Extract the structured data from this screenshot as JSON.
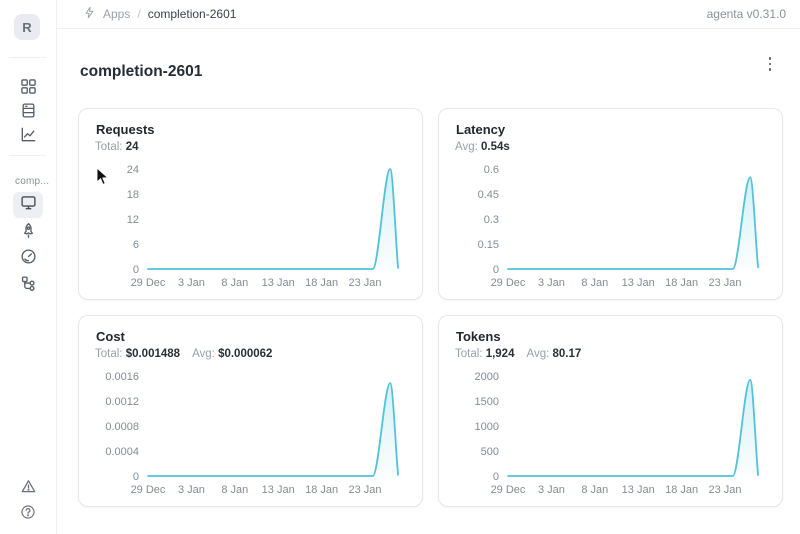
{
  "app": {
    "version_label": "agenta v0.31.0",
    "workspace_initial": "R"
  },
  "breadcrumb": {
    "icon": "bolt-icon",
    "items": [
      "Apps",
      "completion-2601"
    ],
    "separator": "/"
  },
  "page": {
    "title": "completion-2601"
  },
  "sidebar": {
    "workspace_label": "comp...",
    "top_icons": [
      "grid-icon",
      "rows-icon",
      "line-chart-icon"
    ],
    "app_icons": [
      "monitor-icon",
      "rocket-icon",
      "gauge-icon",
      "tree-icon"
    ],
    "active_icon": "monitor-icon",
    "bottom_icons": [
      "warning-triangle-icon",
      "question-circle-icon"
    ]
  },
  "colors": {
    "line": "#4FC3DC",
    "card_border": "#e4e7ec",
    "muted_text": "#99a0a9"
  },
  "chart_data": [
    {
      "type": "area",
      "title": "Requests",
      "stats": [
        {
          "label": "Total:",
          "value": "24"
        }
      ],
      "x_tick_labels": [
        "29 Dec",
        "3 Jan",
        "8 Jan",
        "13 Jan",
        "18 Jan",
        "23 Jan"
      ],
      "x_tick_days": [
        0,
        5,
        10,
        15,
        20,
        25
      ],
      "x_domain": [
        0,
        28.8
      ],
      "y_ticks": [
        0,
        6,
        12,
        18,
        24
      ],
      "y_tick_labels": [
        "0",
        "6",
        "12",
        "18",
        "24"
      ],
      "ylim": [
        0,
        24
      ],
      "grid": false,
      "legend": false,
      "points": [
        [
          0,
          0
        ],
        [
          5,
          0
        ],
        [
          10,
          0
        ],
        [
          15,
          0
        ],
        [
          20,
          0
        ],
        [
          25,
          0
        ],
        [
          25.9,
          0
        ],
        [
          27.9,
          24
        ],
        [
          28.8,
          0.3
        ]
      ],
      "line_color": "#4FC3DC"
    },
    {
      "type": "area",
      "title": "Latency",
      "stats": [
        {
          "label": "Avg:",
          "value": "0.54s"
        }
      ],
      "x_tick_labels": [
        "29 Dec",
        "3 Jan",
        "8 Jan",
        "13 Jan",
        "18 Jan",
        "23 Jan"
      ],
      "x_tick_days": [
        0,
        5,
        10,
        15,
        20,
        25
      ],
      "x_domain": [
        0,
        28.8
      ],
      "y_ticks": [
        0,
        0.15,
        0.3,
        0.45,
        0.6
      ],
      "y_tick_labels": [
        "0",
        "0.15",
        "0.3",
        "0.45",
        "0.6"
      ],
      "ylim": [
        0,
        0.6
      ],
      "grid": false,
      "legend": false,
      "points": [
        [
          0,
          0
        ],
        [
          5,
          0
        ],
        [
          10,
          0
        ],
        [
          15,
          0
        ],
        [
          20,
          0
        ],
        [
          25,
          0
        ],
        [
          25.9,
          0
        ],
        [
          27.9,
          0.55
        ],
        [
          28.8,
          0.01
        ]
      ],
      "line_color": "#4FC3DC"
    },
    {
      "type": "area",
      "title": "Cost",
      "stats": [
        {
          "label": "Total:",
          "value": "$0.001488"
        },
        {
          "label": "Avg:",
          "value": "$0.000062"
        }
      ],
      "x_tick_labels": [
        "29 Dec",
        "3 Jan",
        "8 Jan",
        "13 Jan",
        "18 Jan",
        "23 Jan"
      ],
      "x_tick_days": [
        0,
        5,
        10,
        15,
        20,
        25
      ],
      "x_domain": [
        0,
        28.8
      ],
      "y_ticks": [
        0,
        0.0004,
        0.0008,
        0.0012,
        0.0016
      ],
      "y_tick_labels": [
        "0",
        "0.0004",
        "0.0008",
        "0.0012",
        "0.0016"
      ],
      "ylim": [
        0,
        0.0016
      ],
      "grid": false,
      "legend": false,
      "points": [
        [
          0,
          0
        ],
        [
          5,
          0
        ],
        [
          10,
          0
        ],
        [
          15,
          0
        ],
        [
          20,
          0
        ],
        [
          25,
          0
        ],
        [
          25.9,
          0
        ],
        [
          27.9,
          0.001488
        ],
        [
          28.8,
          2e-05
        ]
      ],
      "line_color": "#4FC3DC"
    },
    {
      "type": "area",
      "title": "Tokens",
      "stats": [
        {
          "label": "Total:",
          "value": "1,924"
        },
        {
          "label": "Avg:",
          "value": "80.17"
        }
      ],
      "x_tick_labels": [
        "29 Dec",
        "3 Jan",
        "8 Jan",
        "13 Jan",
        "18 Jan",
        "23 Jan"
      ],
      "x_tick_days": [
        0,
        5,
        10,
        15,
        20,
        25
      ],
      "x_domain": [
        0,
        28.8
      ],
      "y_ticks": [
        0,
        500,
        1000,
        1500,
        2000
      ],
      "y_tick_labels": [
        "0",
        "500",
        "1000",
        "1500",
        "2000"
      ],
      "ylim": [
        0,
        2000
      ],
      "grid": false,
      "legend": false,
      "points": [
        [
          0,
          0
        ],
        [
          5,
          0
        ],
        [
          10,
          0
        ],
        [
          15,
          0
        ],
        [
          20,
          0
        ],
        [
          25,
          0
        ],
        [
          25.9,
          0
        ],
        [
          27.9,
          1924
        ],
        [
          28.8,
          20
        ]
      ],
      "line_color": "#4FC3DC"
    }
  ]
}
